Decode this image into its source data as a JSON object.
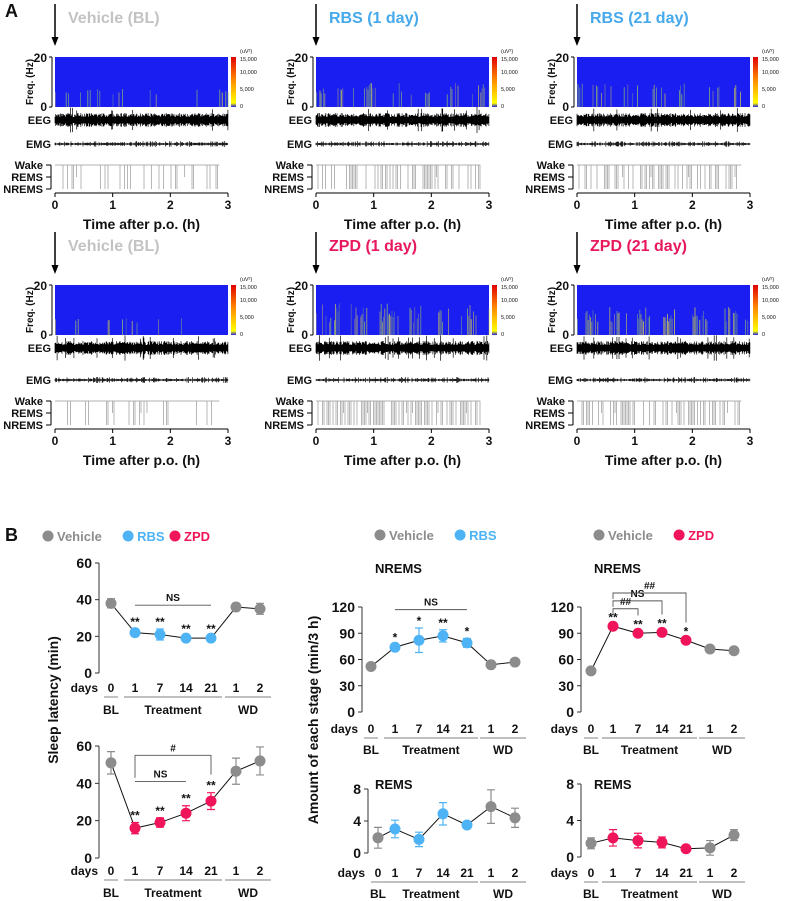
{
  "panel_labels": {
    "a": "A",
    "b": "B"
  },
  "colors": {
    "vehicle": "#8c8c8c",
    "rbs": "#4db3f5",
    "zpd": "#f0145a",
    "vehicle_title": "#c3c3c3",
    "rbs_title": "#45a9ec",
    "zpd_title": "#e8185c"
  },
  "panel_a": {
    "freq_label": "Freq. (Hz)",
    "freq_ticks": [
      "20",
      "0"
    ],
    "colorbar": {
      "unit": "(uV²)",
      "ticks": [
        "15,000",
        "10,000",
        "5,000",
        "0"
      ]
    },
    "eeg_label": "EEG",
    "emg_label": "EMG",
    "stages": [
      "Wake",
      "REMS",
      "NREMS"
    ],
    "time_ticks": [
      "0",
      "1",
      "2",
      "3"
    ],
    "xlabel": "Time after p.o. (h)",
    "recordings": [
      {
        "title": "Vehicle (BL)",
        "color_key": "vehicle_title",
        "activity": 0.25
      },
      {
        "title": "RBS (1 day)",
        "color_key": "rbs_title",
        "activity": 0.55
      },
      {
        "title": "RBS (21 day)",
        "color_key": "rbs_title",
        "activity": 0.5
      },
      {
        "title": "Vehicle (BL)",
        "color_key": "vehicle_title",
        "activity": 0.2
      },
      {
        "title": "ZPD (1 day)",
        "color_key": "zpd_title",
        "activity": 0.85
      },
      {
        "title": "ZPD (21 day)",
        "color_key": "zpd_title",
        "activity": 0.7
      }
    ]
  },
  "legends": [
    [
      {
        "label": "Vehicle",
        "color_key": "vehicle"
      },
      {
        "label": "RBS",
        "color_key": "rbs"
      },
      {
        "label": "ZPD",
        "color_key": "zpd"
      }
    ],
    [
      {
        "label": "Vehicle",
        "color_key": "vehicle"
      },
      {
        "label": "RBS",
        "color_key": "rbs"
      }
    ],
    [
      {
        "label": "Vehicle",
        "color_key": "vehicle"
      },
      {
        "label": "ZPD",
        "color_key": "zpd"
      }
    ]
  ],
  "ylabels": {
    "latency": "Sleep latency (min)",
    "amount": "Amount of each stage (min/3 h)"
  },
  "chart_data": [
    {
      "type": "line",
      "title": "",
      "drug": "rbs",
      "ylim": [
        0,
        60
      ],
      "yticks": [
        "0",
        "20",
        "40",
        "60"
      ],
      "x_prefix": "days",
      "x": [
        "0",
        "1",
        "7",
        "14",
        "21",
        "1",
        "2"
      ],
      "groups": [
        "BL",
        "Treatment",
        "WD"
      ],
      "values": [
        38,
        22,
        21,
        19,
        19,
        36,
        35
      ],
      "errors": [
        2.5,
        2,
        3,
        1.2,
        1.2,
        2,
        3
      ],
      "stars": [
        "",
        "**",
        "**",
        "**",
        "**",
        "",
        ""
      ],
      "brackets": [
        {
          "from": 1,
          "to": 4,
          "label": "NS",
          "y": 37,
          "open": true
        }
      ]
    },
    {
      "type": "line",
      "title": "",
      "drug": "zpd",
      "ylim": [
        0,
        60
      ],
      "yticks": [
        "0",
        "20",
        "40",
        "60"
      ],
      "x_prefix": "days",
      "x": [
        "0",
        "1",
        "7",
        "14",
        "21",
        "1",
        "2"
      ],
      "groups": [
        "BL",
        "Treatment",
        "WD"
      ],
      "values": [
        51,
        16,
        19,
        24,
        30.5,
        46.5,
        52
      ],
      "errors": [
        6,
        3,
        2.5,
        4,
        4.5,
        7,
        7.5
      ],
      "stars": [
        "",
        "**",
        "**",
        "**",
        "**",
        "",
        ""
      ],
      "brackets": [
        {
          "from": 1,
          "to": 3,
          "label": "NS",
          "y": 41,
          "open": true
        },
        {
          "from": 1,
          "to": 4,
          "label": "#",
          "y": 55,
          "open": false
        }
      ]
    },
    {
      "type": "line",
      "title": "NREMS",
      "drug": "rbs",
      "ylim": [
        0,
        120
      ],
      "yticks": [
        "0",
        "30",
        "60",
        "90",
        "120"
      ],
      "x_prefix": "days",
      "x": [
        "0",
        "1",
        "7",
        "14",
        "21",
        "1",
        "2"
      ],
      "groups": [
        "BL",
        "Treatment",
        "WD"
      ],
      "values": [
        52,
        74,
        82,
        87,
        79,
        54,
        57
      ],
      "errors": [
        2,
        3,
        14,
        7,
        5,
        4,
        3
      ],
      "stars": [
        "",
        "*",
        "*",
        "**",
        "*",
        "",
        ""
      ],
      "brackets": [
        {
          "from": 1,
          "to": 4,
          "label": "NS",
          "y": 117,
          "open": true
        }
      ]
    },
    {
      "type": "line",
      "title": "REMS",
      "drug": "rbs",
      "ylim": [
        0,
        8
      ],
      "yticks": [
        "0",
        "4",
        "8"
      ],
      "x_prefix": "days",
      "x": [
        "0",
        "1",
        "7",
        "14",
        "21",
        "1",
        "2"
      ],
      "groups": [
        "BL",
        "Treatment",
        "WD"
      ],
      "values": [
        1.9,
        3.0,
        1.7,
        4.9,
        3.5,
        5.8,
        4.4
      ],
      "errors": [
        1.3,
        1.1,
        0.9,
        1.4,
        0.4,
        2.1,
        1.2
      ],
      "stars": [
        "",
        "",
        "",
        "",
        "",
        "",
        ""
      ],
      "brackets": []
    },
    {
      "type": "line",
      "title": "NREMS",
      "drug": "zpd",
      "ylim": [
        0,
        120
      ],
      "yticks": [
        "0",
        "30",
        "60",
        "90",
        "120"
      ],
      "x_prefix": "days",
      "x": [
        "0",
        "1",
        "7",
        "14",
        "21",
        "1",
        "2"
      ],
      "groups": [
        "BL",
        "Treatment",
        "WD"
      ],
      "values": [
        47,
        98,
        90,
        91,
        82,
        72,
        70
      ],
      "errors": [
        2,
        2,
        2,
        2,
        2,
        2,
        2
      ],
      "stars": [
        "",
        "**",
        "**",
        "**",
        "*",
        "",
        ""
      ],
      "brackets": [
        {
          "from": 1,
          "to": 2,
          "label": "##",
          "y": 118,
          "open": false
        },
        {
          "from": 1,
          "to": 3,
          "label": "NS",
          "y": 127,
          "open": false
        },
        {
          "from": 1,
          "to": 4,
          "label": "##",
          "y": 136,
          "open": false
        }
      ]
    },
    {
      "type": "line",
      "title": "REMS",
      "drug": "zpd",
      "ylim": [
        0,
        8
      ],
      "yticks": [
        "0",
        "4",
        "8"
      ],
      "x_prefix": "days",
      "x": [
        "0",
        "1",
        "7",
        "14",
        "21",
        "1",
        "2"
      ],
      "groups": [
        "BL",
        "Treatment",
        "WD"
      ],
      "values": [
        1.5,
        2.1,
        1.8,
        1.6,
        0.9,
        1.0,
        2.4
      ],
      "errors": [
        0.6,
        0.9,
        0.8,
        0.6,
        0.3,
        0.8,
        0.6
      ],
      "stars": [
        "",
        "",
        "",
        "",
        "",
        "",
        ""
      ],
      "brackets": []
    }
  ]
}
